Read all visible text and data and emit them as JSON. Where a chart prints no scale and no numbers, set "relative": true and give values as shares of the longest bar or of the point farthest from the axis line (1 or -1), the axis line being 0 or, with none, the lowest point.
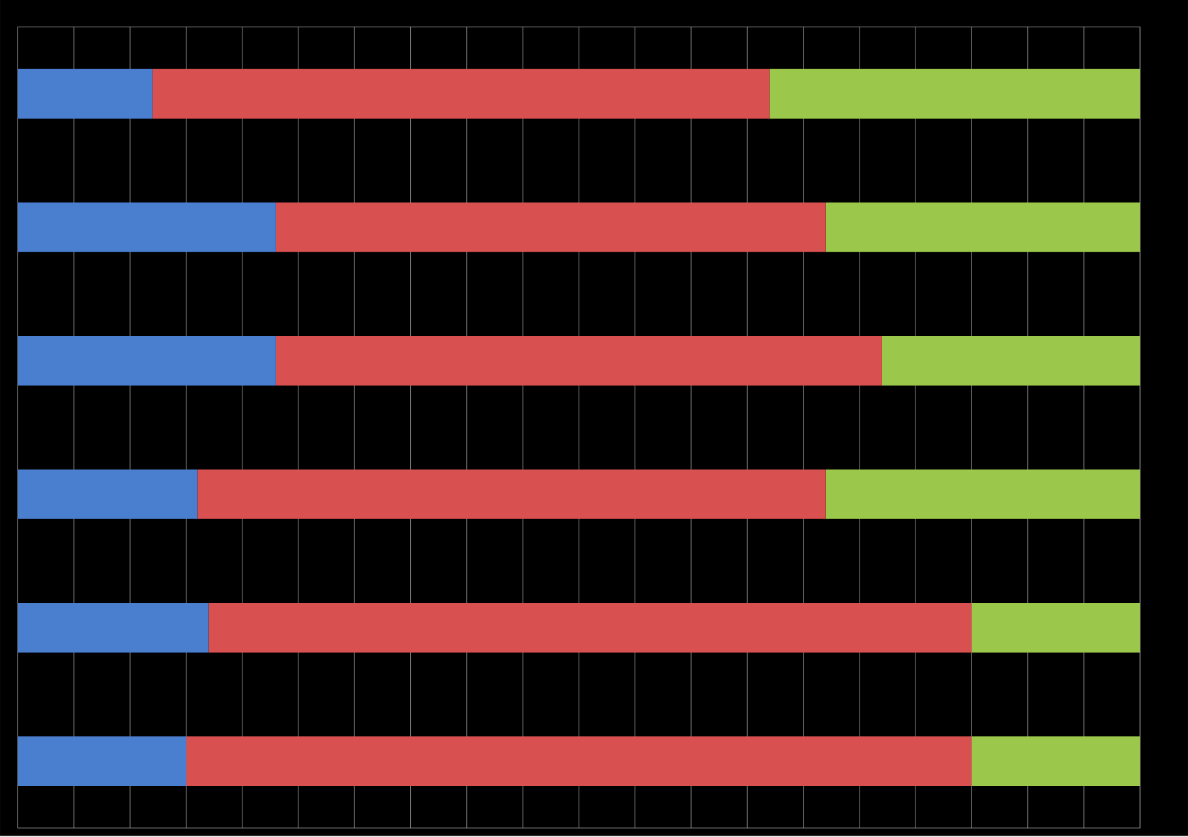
{
  "chart_data": {
    "type": "bar",
    "orientation": "horizontal",
    "stacked": true,
    "relative": true,
    "grid": "x",
    "tick_labels": false,
    "categories": [
      null,
      null,
      null,
      null,
      null,
      null
    ],
    "series": [
      {
        "color": "#4a7fd0",
        "values": [
          0.12,
          0.23,
          0.23,
          0.16,
          0.17,
          0.15
        ]
      },
      {
        "color": "#d85050",
        "values": [
          0.55,
          0.49,
          0.54,
          0.56,
          0.68,
          0.7
        ]
      },
      {
        "color": "#9bc84a",
        "values": [
          0.33,
          0.28,
          0.23,
          0.28,
          0.15,
          0.15
        ]
      }
    ]
  }
}
